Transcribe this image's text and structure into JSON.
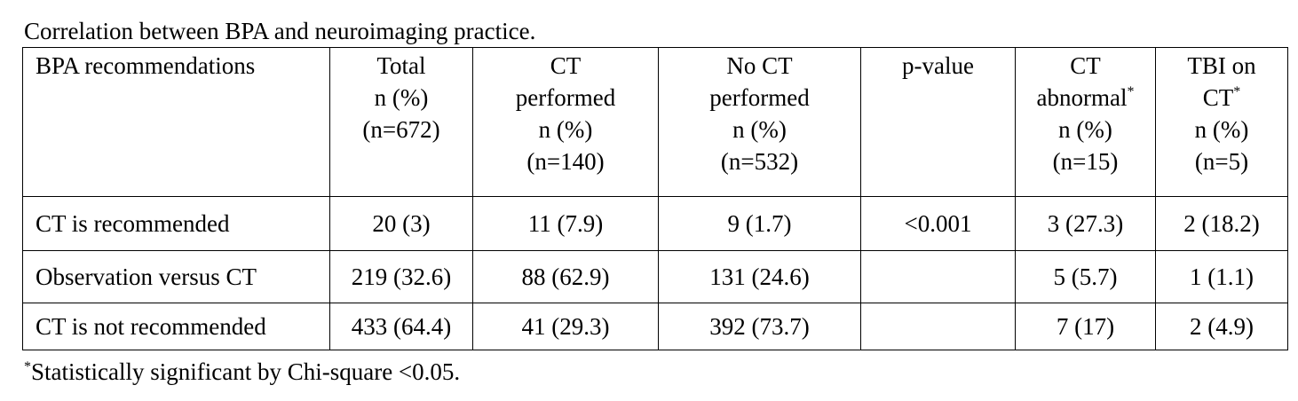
{
  "title": "Correlation between BPA and neuroimaging practice.",
  "table": {
    "header": [
      [
        "BPA recommendations"
      ],
      [
        "Total",
        "n (%)",
        "(n=672)"
      ],
      [
        "CT",
        "performed",
        "n (%)",
        "(n=140)"
      ],
      [
        "No CT",
        "performed",
        "n (%)",
        "(n=532)"
      ],
      [
        "p-value"
      ],
      [
        "CT",
        {
          "text": "abnormal",
          "sup": "*"
        },
        "n (%)",
        "(n=15)"
      ],
      [
        "TBI on",
        {
          "text": "CT",
          "sup": "*"
        },
        "n (%)",
        "(n=5)"
      ]
    ],
    "rows": [
      [
        "CT is recommended",
        "20 (3)",
        "11 (7.9)",
        "9 (1.7)",
        "<0.001",
        "3 (27.3)",
        "2 (18.2)"
      ],
      [
        "Observation versus CT",
        "219 (32.6)",
        "88 (62.9)",
        "131 (24.6)",
        null,
        "5 (5.7)",
        "1 (1.1)"
      ],
      [
        "CT is not recommended",
        "433 (64.4)",
        "41 (29.3)",
        "392 (73.7)",
        null,
        "7 (17)",
        "2 (4.9)"
      ]
    ]
  },
  "footnote": {
    "mark": "*",
    "text": "Statistically significant by Chi-square <0.05."
  }
}
